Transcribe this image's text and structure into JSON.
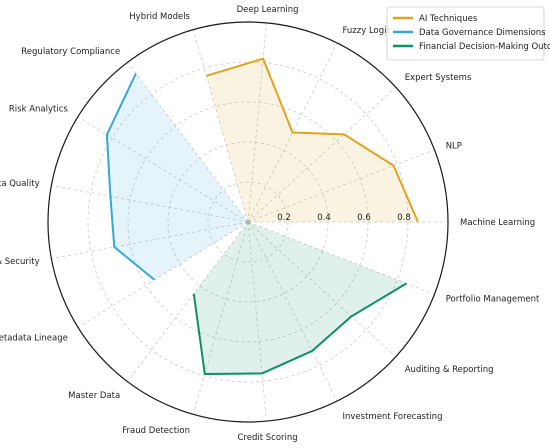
{
  "chart_data": {
    "type": "radar",
    "axes": [
      "Machine Learning",
      "NLP",
      "Expert Systems",
      "Fuzzy Logic",
      "Deep Learning",
      "Hybrid Models",
      "Regulatory Compliance",
      "Risk Analytics",
      "Data Quality",
      "Privacy & Security",
      "Metadata Lineage",
      "Master Data",
      "Fraud Detection",
      "Credit Scoring",
      "Investment Forecasting",
      "Auditing & Reporting",
      "Portfolio Management"
    ],
    "radial_ticks": [
      "0.2",
      "0.4",
      "0.6",
      "0.8"
    ],
    "rlim": [
      0,
      1
    ],
    "grid": true,
    "legend_position": "top-right",
    "series": [
      {
        "name": "AI Techniques",
        "color": "#E0A31D",
        "axes_index": [
          0,
          1,
          2,
          3,
          4,
          5
        ],
        "values": [
          0.85,
          0.78,
          0.65,
          0.5,
          0.82,
          0.76
        ]
      },
      {
        "name": "Data Governance Dimensions",
        "color": "#36A7D6",
        "axes_index": [
          6,
          7,
          8,
          9,
          10
        ],
        "values": [
          0.93,
          0.83,
          0.7,
          0.68,
          0.55
        ]
      },
      {
        "name": "Financial Decision-Making Outcomes",
        "color": "#0E8F6A",
        "axes_index": [
          11,
          12,
          13,
          14,
          15,
          16
        ],
        "values": [
          0.45,
          0.79,
          0.76,
          0.72,
          0.7,
          0.85
        ]
      }
    ]
  }
}
